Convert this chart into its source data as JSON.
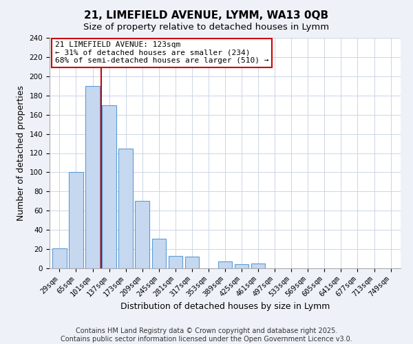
{
  "title": "21, LIMEFIELD AVENUE, LYMM, WA13 0QB",
  "subtitle": "Size of property relative to detached houses in Lymm",
  "xlabel": "Distribution of detached houses by size in Lymm",
  "ylabel": "Number of detached properties",
  "categories": [
    "29sqm",
    "65sqm",
    "101sqm",
    "137sqm",
    "173sqm",
    "209sqm",
    "245sqm",
    "281sqm",
    "317sqm",
    "353sqm",
    "389sqm",
    "425sqm",
    "461sqm",
    "497sqm",
    "533sqm",
    "569sqm",
    "605sqm",
    "641sqm",
    "677sqm",
    "713sqm",
    "749sqm"
  ],
  "values": [
    21,
    100,
    190,
    170,
    125,
    70,
    31,
    13,
    12,
    0,
    7,
    4,
    5,
    0,
    0,
    0,
    0,
    0,
    0,
    0,
    0
  ],
  "bar_color": "#c5d8f0",
  "bar_edge_color": "#5b9bd5",
  "ylim": [
    0,
    240
  ],
  "yticks": [
    0,
    20,
    40,
    60,
    80,
    100,
    120,
    140,
    160,
    180,
    200,
    220,
    240
  ],
  "vline_x": 2.5,
  "vline_color": "#cc0000",
  "annotation_line1": "21 LIMEFIELD AVENUE: 123sqm",
  "annotation_line2": "← 31% of detached houses are smaller (234)",
  "annotation_line3": "68% of semi-detached houses are larger (510) →",
  "footer_text": "Contains HM Land Registry data © Crown copyright and database right 2025.\nContains public sector information licensed under the Open Government Licence v3.0.",
  "background_color": "#eef2f8",
  "plot_background_color": "#ffffff",
  "grid_color": "#ccd5e5",
  "title_fontsize": 11,
  "subtitle_fontsize": 9.5,
  "axis_label_fontsize": 9,
  "tick_fontsize": 7.5,
  "footer_fontsize": 7,
  "annot_fontsize": 8
}
